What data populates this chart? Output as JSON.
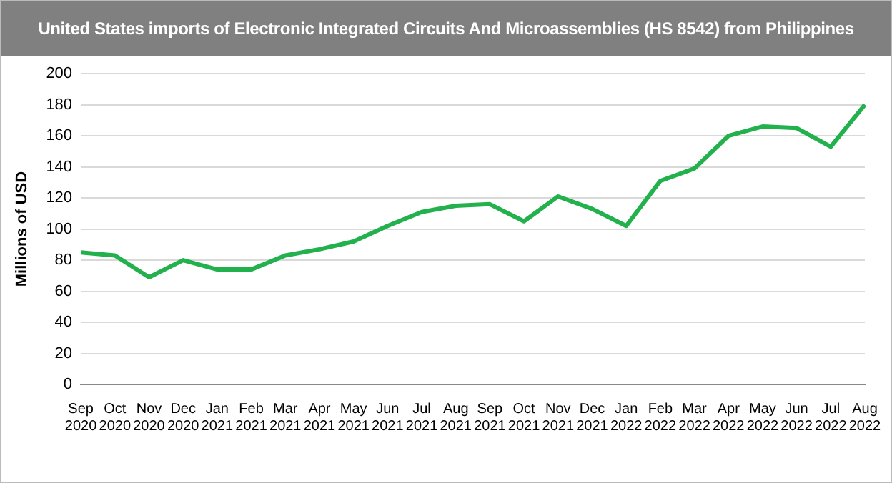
{
  "chart_data": {
    "type": "line",
    "title": "United States imports of Electronic Integrated Circuits And Microassemblies (HS 8542) from Philippines",
    "ylabel": "Millions of USD",
    "categories": [
      "Sep 2020",
      "Oct 2020",
      "Nov 2020",
      "Dec 2020",
      "Jan 2021",
      "Feb 2021",
      "Mar 2021",
      "Apr 2021",
      "May 2021",
      "Jun 2021",
      "Jul 2021",
      "Aug 2021",
      "Sep 2021",
      "Oct 2021",
      "Nov 2021",
      "Dec 2021",
      "Jan 2022",
      "Feb 2022",
      "Mar 2022",
      "Apr 2022",
      "May 2022",
      "Jun 2022",
      "Jul 2022",
      "Aug 2022"
    ],
    "series": [
      {
        "color": "#22b14c",
        "values": [
          85,
          83,
          69,
          80,
          74,
          74,
          83,
          87,
          92,
          102,
          111,
          115,
          116,
          105,
          121,
          113,
          102,
          131,
          139,
          160,
          166,
          165,
          153,
          180
        ]
      }
    ],
    "ylim": [
      0,
      200
    ],
    "yticks": [
      0,
      20,
      40,
      60,
      80,
      100,
      120,
      140,
      160,
      180,
      200
    ],
    "grid": "y",
    "legend": false,
    "marker": "none",
    "line_style": "solid"
  }
}
